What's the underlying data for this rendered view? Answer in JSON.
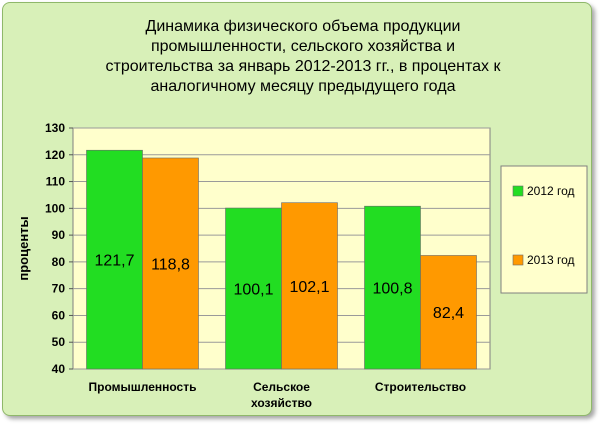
{
  "chart_data": {
    "type": "bar",
    "title": "Динамика физического объема продукции промышленности, сельского хозяйства и строительства за январь 2012-2013 гг., в процентах к аналогичному месяцу предыдущего года",
    "title_lines": [
      "Динамика физического объема продукции",
      "промышленности, сельского хозяйства и",
      "строительства за январь 2012-2013 гг., в процентах к",
      "аналогичному месяцу предыдущего года"
    ],
    "ylabel": "проценты",
    "xlabel": "",
    "ylim": [
      40,
      130
    ],
    "yticks": [
      40,
      50,
      60,
      70,
      80,
      90,
      100,
      110,
      120,
      130
    ],
    "categories": [
      [
        "Промышленность"
      ],
      [
        "Сельское",
        "хозяйство"
      ],
      [
        "Строительство"
      ]
    ],
    "series": [
      {
        "name": "2012 год",
        "color": "#22dd22",
        "values": [
          121.7,
          100.1,
          100.8
        ],
        "labels": [
          "121,7",
          "100,1",
          "100,8"
        ]
      },
      {
        "name": "2013 год",
        "color": "#ff9900",
        "values": [
          118.8,
          102.1,
          82.4
        ],
        "labels": [
          "118,8",
          "102,1",
          "82,4"
        ]
      }
    ],
    "plot_background": "#ffffcc",
    "grid": true,
    "legend_position": "right"
  }
}
